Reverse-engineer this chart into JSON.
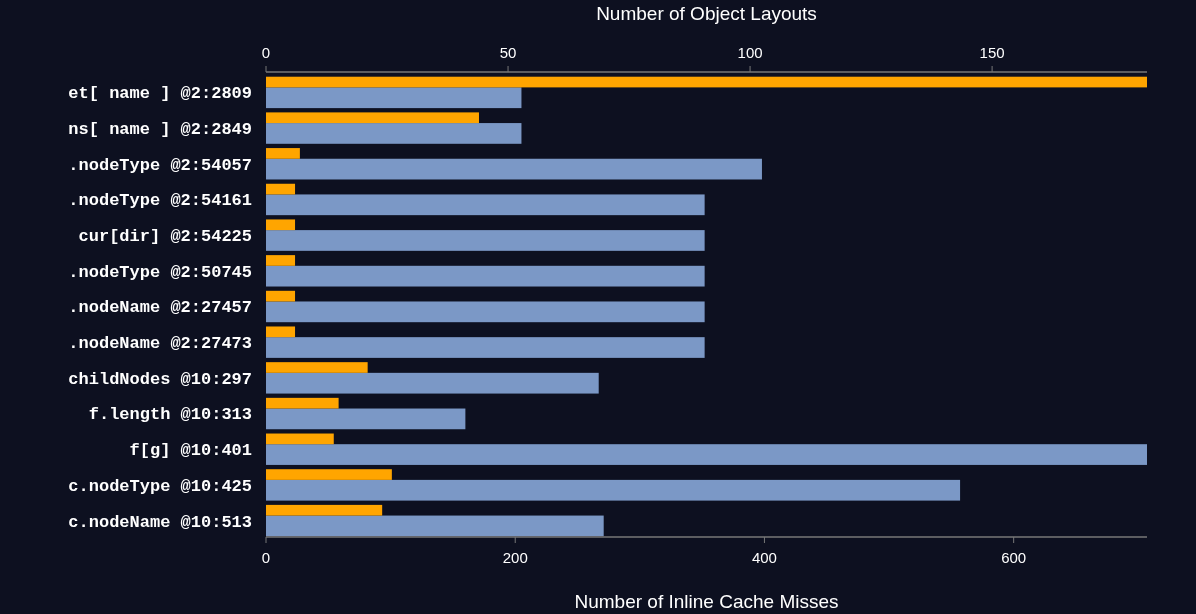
{
  "chart_data": {
    "type": "bar",
    "orientation": "horizontal",
    "xlabel": "Number of Inline Cache Misses",
    "x2label": "Number of Object Layouts",
    "categories": [
      "et[ name ] @2:2809",
      "ns[ name ] @2:2849",
      ".nodeType @2:54057",
      ".nodeType @2:54161",
      "cur[dir] @2:54225",
      ".nodeType @2:50745",
      ".nodeName @2:27457",
      ".nodeName @2:27473",
      "childNodes @10:297",
      "f.length @10:313",
      "f[g] @10:401",
      "c.nodeType @10:425",
      "c.nodeName @10:513"
    ],
    "xlim": [
      0,
      707
    ],
    "xticks": [
      0,
      200,
      400,
      600
    ],
    "x2lim": [
      0,
      182
    ],
    "x2ticks": [
      0,
      50,
      100,
      150
    ],
    "series": [
      {
        "color": "#7b98c6",
        "values": [
          205,
          205,
          398,
          352,
          352,
          352,
          352,
          352,
          267,
          160,
          707,
          557,
          271
        ]
      },
      {
        "color": "#ffa500",
        "axis": "x2",
        "values": [
          182,
          44,
          7,
          6,
          6,
          6,
          6,
          6,
          21,
          15,
          14,
          26,
          24
        ]
      }
    ]
  }
}
